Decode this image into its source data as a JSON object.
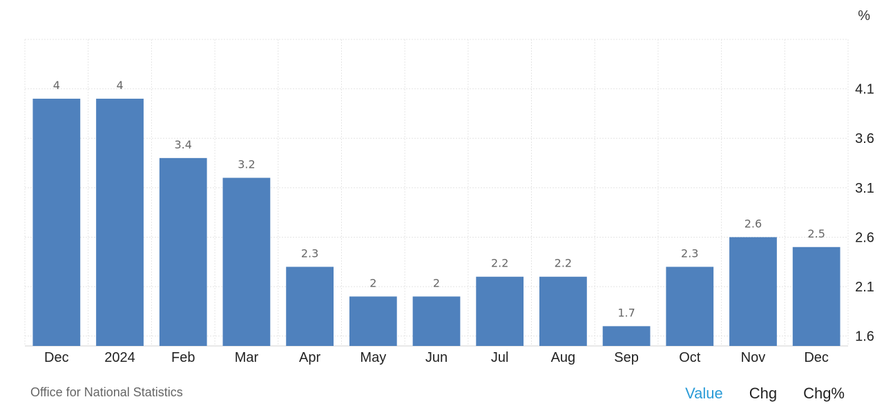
{
  "unit_label": "%",
  "source": "Office for National Statistics",
  "view_toggles": [
    {
      "label": "Value",
      "active": true
    },
    {
      "label": "Chg",
      "active": false
    },
    {
      "label": "Chg%",
      "active": false
    }
  ],
  "colors": {
    "bar": "#4f81bd",
    "grid": "#e4e4e4",
    "data_label": "#666666",
    "tick_label": "#222222",
    "active_toggle": "#2a9bd7"
  },
  "chart_data": {
    "type": "bar",
    "categories": [
      "Dec",
      "2024",
      "Feb",
      "Mar",
      "Apr",
      "May",
      "Jun",
      "Jul",
      "Aug",
      "Sep",
      "Oct",
      "Nov",
      "Dec"
    ],
    "values": [
      4,
      4,
      3.4,
      3.2,
      2.3,
      2,
      2,
      2.2,
      2.2,
      1.7,
      2.3,
      2.6,
      2.5
    ],
    "data_labels": [
      "4",
      "4",
      "3.4",
      "3.2",
      "2.3",
      "2",
      "2",
      "2.2",
      "2.2",
      "1.7",
      "2.3",
      "2.6",
      "2.5"
    ],
    "y_ticks": [
      1.6,
      2.1,
      2.6,
      3.1,
      3.6,
      4.1
    ],
    "y_tick_labels": [
      "1.6",
      "2.1",
      "2.6",
      "3.1",
      "3.6",
      "4.1"
    ],
    "ylim": [
      1.5,
      4.6
    ],
    "yaxis_side": "right",
    "grid": true,
    "legend": "none"
  }
}
